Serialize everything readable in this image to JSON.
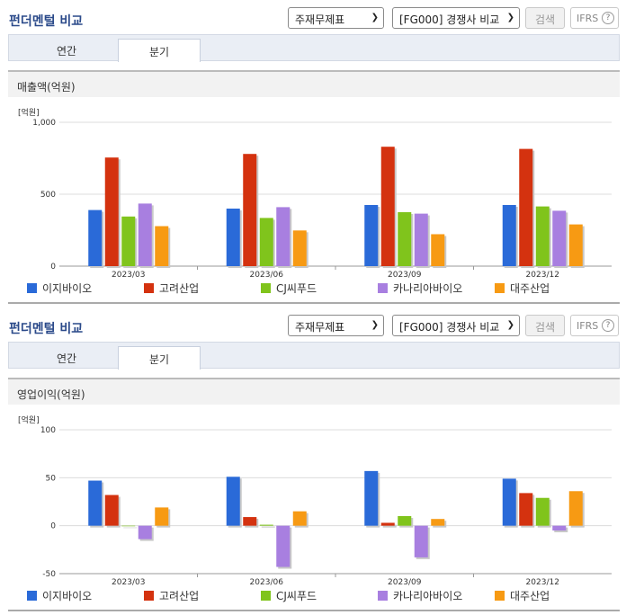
{
  "panels": [
    {
      "title": "펀더멘털 비교",
      "select1": "주재무제표",
      "select2": "[FG000] 경쟁사 비교",
      "search_label": "검색",
      "ifrs_label": "IFRS",
      "ifrs_help": "?",
      "tabs": [
        "연간",
        "분기"
      ],
      "active_tab": "분기",
      "section_title": "매출액(억원)",
      "unit": "[억원]",
      "chart_data": {
        "type": "bar",
        "title": "매출액(억원)",
        "unit": "[억원]",
        "categories": [
          "2023/03",
          "2023/06",
          "2023/09",
          "2023/12"
        ],
        "ylim": [
          0,
          1000
        ],
        "yticks": [
          0,
          500,
          "1,000"
        ],
        "ytick_values": [
          0,
          500,
          1000
        ],
        "grid": true,
        "legend_position": "bottom",
        "series": [
          {
            "name": "이지바이오",
            "color": "#2a6ad8",
            "values": [
              390,
              400,
              425,
              425
            ]
          },
          {
            "name": "고려산업",
            "color": "#d4320f",
            "values": [
              755,
              780,
              830,
              815
            ]
          },
          {
            "name": "CJ씨푸드",
            "color": "#80c41c",
            "values": [
              345,
              335,
              375,
              415
            ]
          },
          {
            "name": "카나리아바이오",
            "color": "#a87fe0",
            "values": [
              435,
              410,
              365,
              385
            ]
          },
          {
            "name": "대주산업",
            "color": "#f79a13",
            "values": [
              278,
              248,
              222,
              290
            ]
          }
        ]
      }
    },
    {
      "title": "펀더멘털 비교",
      "select1": "주재무제표",
      "select2": "[FG000] 경쟁사 비교",
      "search_label": "검색",
      "ifrs_label": "IFRS",
      "ifrs_help": "?",
      "tabs": [
        "연간",
        "분기"
      ],
      "active_tab": "분기",
      "section_title": "영업이익(억원)",
      "unit": "[억원]",
      "chart_data": {
        "type": "bar",
        "title": "영업이익(억원)",
        "unit": "[억원]",
        "categories": [
          "2023/03",
          "2023/06",
          "2023/09",
          "2023/12"
        ],
        "ylim": [
          -50,
          100
        ],
        "yticks": [
          -50,
          0,
          50,
          100
        ],
        "ytick_values": [
          -50,
          0,
          50,
          100
        ],
        "grid": true,
        "legend_position": "bottom",
        "series": [
          {
            "name": "이지바이오",
            "color": "#2a6ad8",
            "values": [
              47,
              51,
              57,
              49
            ]
          },
          {
            "name": "고려산업",
            "color": "#d4320f",
            "values": [
              32,
              9,
              3,
              34
            ]
          },
          {
            "name": "CJ씨푸드",
            "color": "#80c41c",
            "values": [
              0,
              1,
              10,
              29
            ]
          },
          {
            "name": "카나리아바이오",
            "color": "#a87fe0",
            "values": [
              -14,
              -43,
              -33,
              -5
            ]
          },
          {
            "name": "대주산업",
            "color": "#f79a13",
            "values": [
              19,
              15,
              7,
              36
            ]
          }
        ]
      }
    }
  ]
}
